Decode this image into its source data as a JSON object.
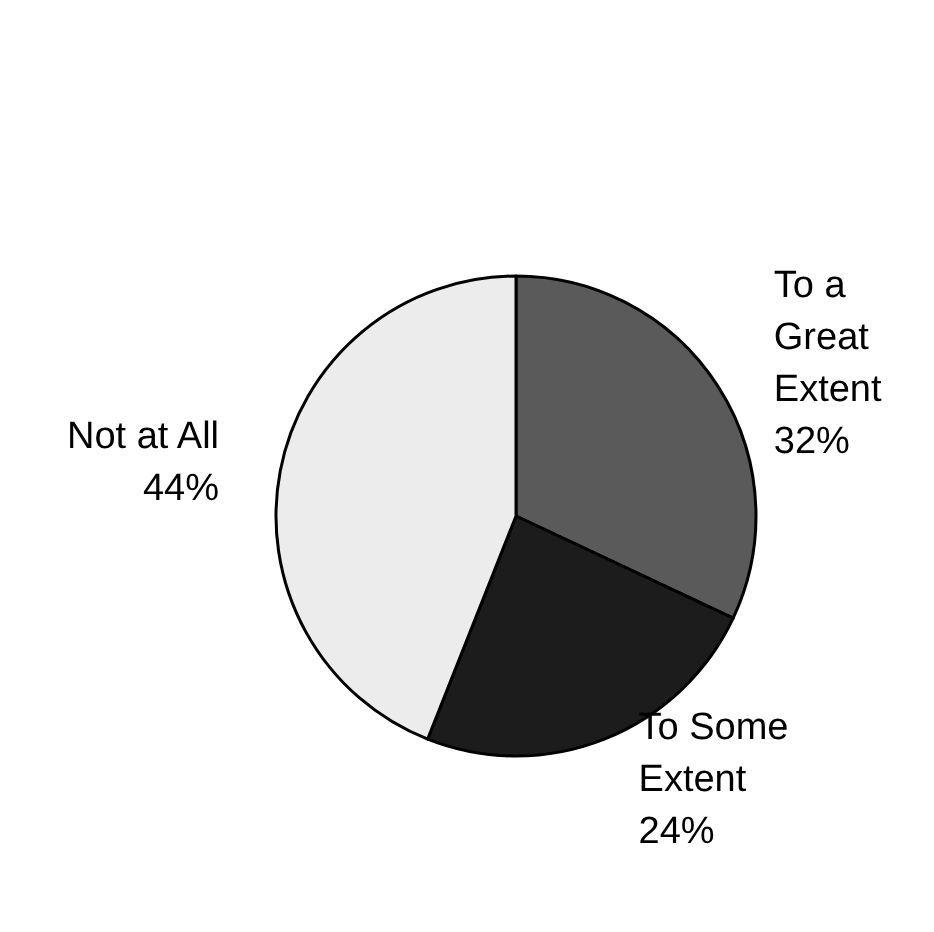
{
  "chart_data": {
    "type": "pie",
    "categories": [
      "To a Great Extent",
      "To Some Extent",
      "Not at All"
    ],
    "values": [
      32,
      24,
      44
    ],
    "value_labels": [
      "32%",
      "24%",
      "44%"
    ],
    "colors": [
      "#5a5a5a",
      "#1c1c1c",
      "#ececec"
    ]
  }
}
